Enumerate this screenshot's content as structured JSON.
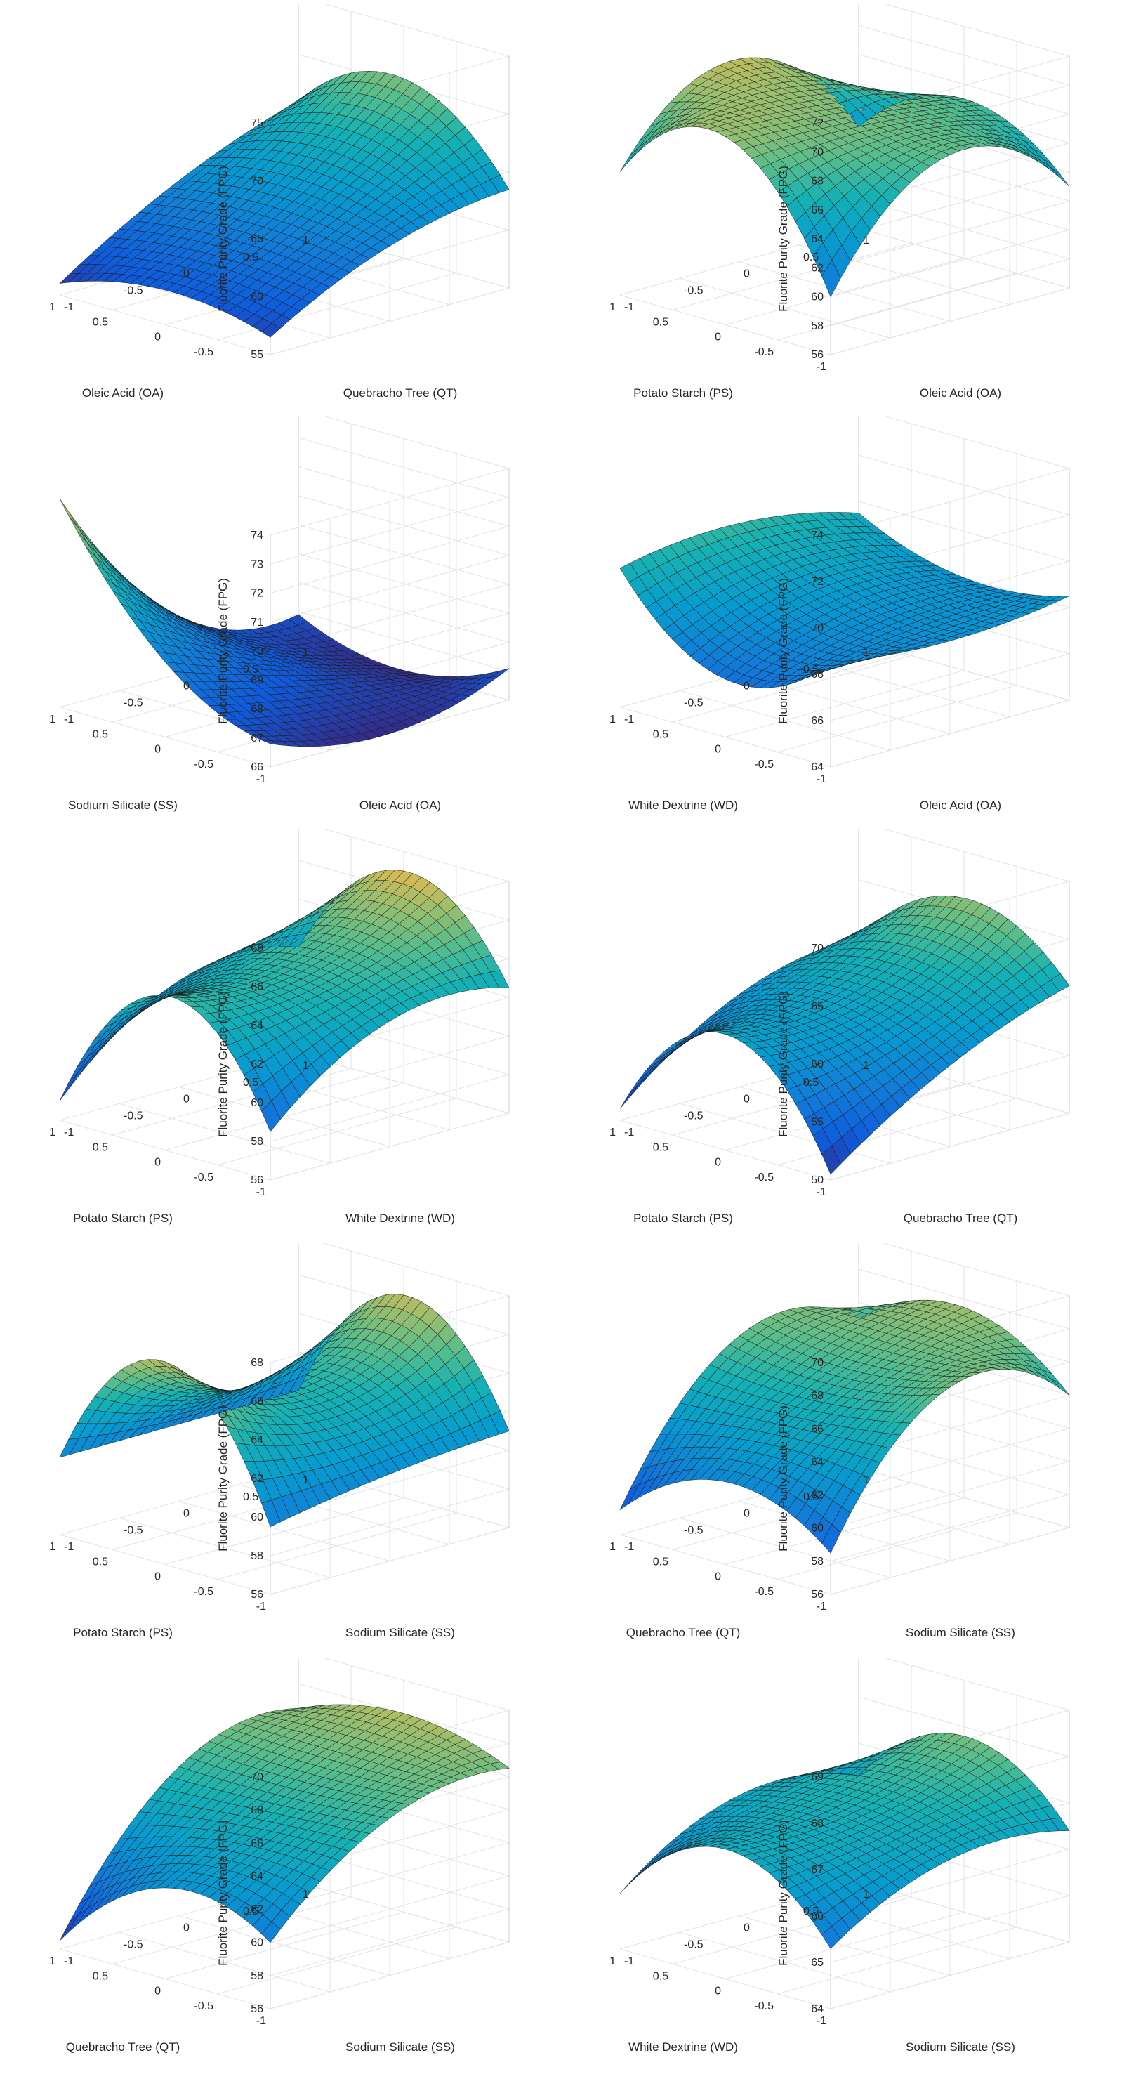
{
  "chart_data": [
    {
      "type": "surface",
      "title": "",
      "xlabel": "Quebracho Tree (QT)",
      "ylabel": "Oleic Acid (OA)",
      "zlabel": "Fluorite Purity Grade (FPG)",
      "xticks": [
        "-1",
        "-0.5",
        "0",
        "0.5",
        "1"
      ],
      "yticks": [
        "-0.5",
        "0",
        "0.5",
        "1"
      ],
      "zticks": [
        "55",
        "60",
        "65",
        "70",
        "75"
      ],
      "xlim": [
        -1,
        1
      ],
      "ylim": [
        -1,
        1
      ],
      "zlim": [
        55,
        75
      ],
      "corners": {
        "x0y0": 56.0,
        "x0y1": 56.5,
        "x1y0": 66.0,
        "x1y1": 63.5
      },
      "mid_x": {
        "y0": 62.0,
        "y1": 61.5
      },
      "mid_y": {
        "x0": 58.0,
        "x1": 70.5
      }
    },
    {
      "type": "surface",
      "title": "",
      "xlabel": "Oleic Acid (OA)",
      "ylabel": "Potato Starch (PS)",
      "zlabel": "Fluorite Purity Grade (FPG)",
      "xticks": [
        "-1",
        "-0.5",
        "0",
        "0.5",
        "1"
      ],
      "yticks": [
        "-1",
        "-0.5",
        "0",
        "0.5",
        "1"
      ],
      "zticks": [
        "56",
        "58",
        "60",
        "62",
        "64",
        "66",
        "68",
        "70",
        "72"
      ],
      "xlim": [
        -1,
        1
      ],
      "ylim": [
        -1,
        1
      ],
      "zlim": [
        56,
        72
      ],
      "corners": {
        "x0y0": 64.5,
        "x0y1": 60.0,
        "x1y0": 63.0,
        "x1y1": 63.0
      },
      "mid_x": {
        "y0": 70.0,
        "y1": 67.5
      },
      "mid_y": {
        "x0": 69.0,
        "x1": 67.0
      }
    },
    {
      "type": "surface",
      "title": "",
      "xlabel": "Oleic Acid (OA)",
      "ylabel": "Sodium Silicate (SS)",
      "zlabel": "Fluorite Purity Grade (FPG)",
      "xticks": [
        "-1",
        "-0.5",
        "0",
        "0.5",
        "1"
      ],
      "yticks": [
        "-1",
        "-0.5",
        "0",
        "0.5",
        "1"
      ],
      "zticks": [
        "66",
        "67",
        "68",
        "69",
        "70",
        "71",
        "72",
        "73",
        "74"
      ],
      "xlim": [
        -1,
        1
      ],
      "ylim": [
        -1,
        1
      ],
      "zlim": [
        66,
        74
      ],
      "corners": {
        "x0y0": 73.2,
        "x0y1": 66.8,
        "x1y0": 66.9,
        "x1y1": 67.1
      },
      "mid_x": {
        "y0": 68.0,
        "y1": 66.0
      },
      "mid_y": {
        "x0": 68.6,
        "x1": 66.0
      }
    },
    {
      "type": "surface",
      "title": "",
      "xlabel": "Oleic Acid (OA)",
      "ylabel": "White Dextrine (WD)",
      "zlabel": "Fluorite Purity Grade (FPG)",
      "xticks": [
        "-1",
        "-0.5",
        "0",
        "0.5",
        "1"
      ],
      "yticks": [
        "-1",
        "-0.5",
        "0",
        "0.5",
        "1"
      ],
      "zticks": [
        "64",
        "66",
        "68",
        "70",
        "72",
        "74"
      ],
      "xlim": [
        -1,
        1
      ],
      "ylim": [
        -1,
        1
      ],
      "zlim": [
        64,
        74
      ],
      "corners": {
        "x0y0": 70.0,
        "x0y1": 68.5,
        "x1y0": 69.5,
        "x1y1": 68.5
      },
      "mid_x": {
        "y0": 70.5,
        "y1": 68.0
      },
      "mid_y": {
        "x0": 66.5,
        "x1": 68.0
      }
    },
    {
      "type": "surface",
      "title": "",
      "xlabel": "White Dextrine (WD)",
      "ylabel": "Potato Starch (PS)",
      "zlabel": "Fluorite Purity Grade (FPG)",
      "xticks": [
        "-1",
        "-0.5",
        "0",
        "0.5",
        "1"
      ],
      "yticks": [
        "-1",
        "-0.5",
        "0",
        "0.5",
        "1"
      ],
      "zticks": [
        "56",
        "58",
        "60",
        "62",
        "64",
        "66",
        "68"
      ],
      "xlim": [
        -1,
        1
      ],
      "ylim": [
        -1,
        1
      ],
      "zlim": [
        56,
        68
      ],
      "corners": {
        "x0y0": 57.0,
        "x0y1": 58.5,
        "x1y0": 61.5,
        "x1y1": 62.5
      },
      "mid_x": {
        "y0": 61.5,
        "y1": 62.5
      },
      "mid_y": {
        "x0": 64.0,
        "x1": 67.0
      }
    },
    {
      "type": "surface",
      "title": "",
      "xlabel": "Quebracho Tree (QT)",
      "ylabel": "Potato Starch (PS)",
      "zlabel": "Fluorite Purity Grade (FPG)",
      "xticks": [
        "-1",
        "-0.5",
        "0",
        "0.5",
        "1"
      ],
      "yticks": [
        "-1",
        "-0.5",
        "0",
        "0.5",
        "1"
      ],
      "zticks": [
        "50",
        "55",
        "60",
        "65",
        "70"
      ],
      "xlim": [
        -1,
        1
      ],
      "ylim": [
        -1,
        1
      ],
      "zlim": [
        50,
        70
      ],
      "corners": {
        "x0y0": 51.0,
        "x0y1": 50.5,
        "x1y0": 60.0,
        "x1y1": 61.0
      },
      "mid_x": {
        "y0": 58.0,
        "y1": 57.0
      },
      "mid_y": {
        "x0": 60.0,
        "x1": 66.0
      }
    },
    {
      "type": "surface",
      "title": "",
      "xlabel": "Sodium Silicate (SS)",
      "ylabel": "Potato Starch (PS)",
      "zlabel": "Fluorite Purity Grade (FPG)",
      "xticks": [
        "-1",
        "-0.5",
        "0",
        "0.5",
        "1"
      ],
      "yticks": [
        "-1",
        "-0.5",
        "0",
        "0.5",
        "1"
      ],
      "zticks": [
        "56",
        "58",
        "60",
        "62",
        "64",
        "66",
        "68"
      ],
      "xlim": [
        -1,
        1
      ],
      "ylim": [
        -1,
        1
      ],
      "zlim": [
        56,
        68
      ],
      "corners": {
        "x0y0": 60.0,
        "x0y1": 59.5,
        "x1y0": 60.0,
        "x1y1": 61.0
      },
      "mid_x": {
        "y0": 60.0,
        "y1": 60.5
      },
      "mid_y": {
        "x0": 66.5,
        "x1": 66.5
      }
    },
    {
      "type": "surface",
      "title": "",
      "xlabel": "Sodium Silicate (SS)",
      "ylabel": "Quebracho Tree (QT)",
      "zlabel": "Fluorite Purity Grade (FPG)",
      "xticks": [
        "-1",
        "-0.5",
        "0",
        "0.5",
        "1"
      ],
      "yticks": [
        "-1",
        "-0.5",
        "0",
        "0.5",
        "1"
      ],
      "zticks": [
        "56",
        "58",
        "60",
        "62",
        "64",
        "66",
        "68",
        "70"
      ],
      "xlim": [
        -1,
        1
      ],
      "ylim": [
        -1,
        1
      ],
      "zlim": [
        56,
        70
      ],
      "corners": {
        "x0y0": 57.5,
        "x0y1": 58.5,
        "x1y0": 65.0,
        "x1y1": 64.0
      },
      "mid_x": {
        "y0": 66.0,
        "y1": 66.5
      },
      "mid_y": {
        "x0": 61.0,
        "x1": 67.5
      }
    },
    {
      "type": "surface",
      "title": "",
      "xlabel": "Sodium Silicate (SS)",
      "ylabel": "Quebracho Tree (QT)",
      "zlabel": "Fluorite Purity Grade (FPG)",
      "xticks": [
        "-1",
        "-0.5",
        "0",
        "0.5",
        "1"
      ],
      "yticks": [
        "-1",
        "-0.5",
        "0",
        "0.5",
        "1"
      ],
      "zticks": [
        "56",
        "58",
        "60",
        "62",
        "64",
        "66",
        "68",
        "70"
      ],
      "xlim": [
        -1,
        1
      ],
      "ylim": [
        -1,
        1
      ],
      "zlim": [
        56,
        70
      ],
      "corners": {
        "x0y0": 56.5,
        "x0y1": 60.0,
        "x1y0": 66.5,
        "x1y1": 66.5
      },
      "mid_x": {
        "y0": 65.0,
        "y1": 65.5
      },
      "mid_y": {
        "x0": 61.5,
        "x1": 68.0
      }
    },
    {
      "type": "surface",
      "title": "",
      "xlabel": "Sodium Silicate (SS)",
      "ylabel": "White Dextrine (WD)",
      "zlabel": "Fluorite Purity Grade (FPG)",
      "xticks": [
        "-1",
        "-0.5",
        "0",
        "0.5",
        "1"
      ],
      "yticks": [
        "-1",
        "-0.5",
        "0",
        "0.5",
        "1"
      ],
      "zticks": [
        "64",
        "65",
        "66",
        "67",
        "68",
        "69"
      ],
      "xlim": [
        -1,
        1
      ],
      "ylim": [
        -1,
        1
      ],
      "zlim": [
        64,
        69
      ],
      "corners": {
        "x0y0": 65.2,
        "x0y1": 65.3,
        "x1y0": 66.3,
        "x1y1": 66.4
      },
      "mid_x": {
        "y0": 66.6,
        "y1": 66.5
      },
      "mid_y": {
        "x0": 66.8,
        "x1": 67.8
      }
    }
  ]
}
